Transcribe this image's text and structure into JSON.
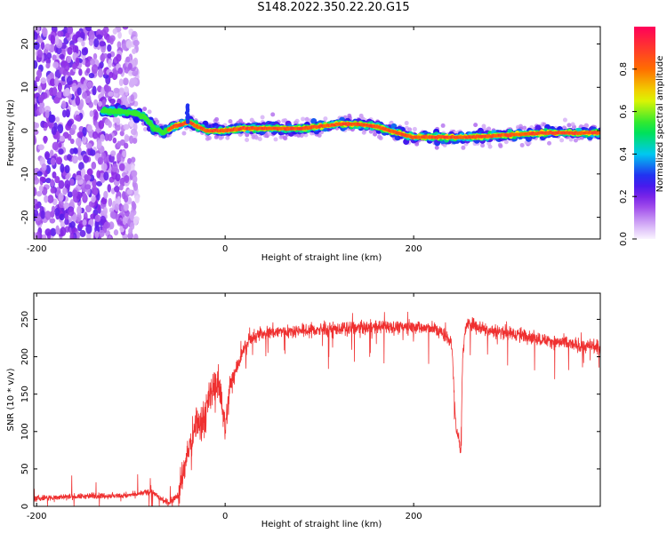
{
  "title": "S148.2022.350.22.20.G15",
  "chart_data": [
    {
      "type": "heatmap",
      "xlabel": "Height of straight line (km)",
      "ylabel": "Frequency (Hz)",
      "xlim": [
        -203,
        398
      ],
      "ylim": [
        -25,
        24
      ],
      "xticks": [
        -200,
        0,
        200
      ],
      "yticks": [
        -20,
        -10,
        0,
        10,
        20
      ],
      "colorbar": {
        "label": "Normalized spectral amplitude",
        "ticks": [
          0.0,
          0.2,
          0.4,
          0.6,
          0.8
        ],
        "range": [
          0,
          1
        ]
      },
      "ridge": {
        "x": [
          -130,
          -110,
          -95,
          -85,
          -75,
          -65,
          -55,
          -45,
          -38,
          -30,
          -20,
          0,
          20,
          50,
          80,
          100,
          120,
          140,
          160,
          175,
          190,
          200,
          220,
          260,
          300,
          340,
          380,
          398
        ],
        "y": [
          4.5,
          4.5,
          4.0,
          3.0,
          0.5,
          -0.5,
          1.0,
          1.5,
          2.0,
          1.0,
          0.0,
          0.0,
          0.5,
          0.5,
          0.5,
          1.0,
          1.5,
          1.5,
          1.0,
          0.0,
          -1.0,
          -1.5,
          -1.5,
          -1.5,
          -1.0,
          -0.5,
          -0.5,
          -0.5
        ]
      }
    },
    {
      "type": "line",
      "xlabel": "Height of straight line (km)",
      "ylabel": "SNR (10 * v/v)",
      "xlim": [
        -203,
        398
      ],
      "ylim": [
        0,
        285
      ],
      "xticks": [
        -200,
        0,
        200
      ],
      "yticks": [
        0,
        50,
        100,
        150,
        200,
        250
      ],
      "color": "#ef3030",
      "series": [
        {
          "x": [
            -203,
            -180,
            -160,
            -140,
            -120,
            -100,
            -90,
            -80,
            -75,
            -70,
            -60,
            -50,
            -45,
            -40,
            -35,
            -30,
            -25,
            -20,
            -15,
            -10,
            -5,
            0,
            5,
            10,
            15,
            20,
            25,
            30,
            40,
            60,
            80,
            100,
            120,
            140,
            160,
            180,
            200,
            220,
            225,
            230,
            235,
            240,
            242,
            245,
            248,
            250,
            252,
            255,
            260,
            270,
            280,
            300,
            320,
            340,
            360,
            380,
            398
          ],
          "y": [
            10,
            12,
            13,
            14,
            14,
            15,
            17,
            20,
            18,
            10,
            5,
            15,
            40,
            70,
            90,
            115,
            110,
            130,
            150,
            165,
            160,
            100,
            160,
            180,
            195,
            210,
            220,
            225,
            232,
            234,
            235,
            236,
            237,
            238,
            240,
            240,
            240,
            238,
            236,
            232,
            226,
            220,
            180,
            100,
            95,
            70,
            200,
            240,
            245,
            240,
            235,
            232,
            228,
            222,
            218,
            214,
            212
          ]
        }
      ]
    }
  ]
}
